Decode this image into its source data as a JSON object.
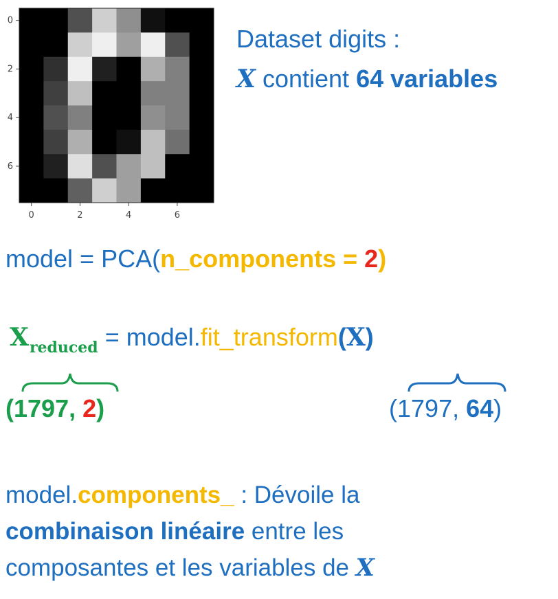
{
  "digit_image": {
    "x_ticks": [
      "0",
      "2",
      "4",
      "6"
    ],
    "y_ticks": [
      "0",
      "2",
      "4",
      "6"
    ],
    "pixels": [
      [
        0,
        0,
        5,
        13,
        9,
        1,
        0,
        0
      ],
      [
        0,
        0,
        13,
        15,
        10,
        15,
        5,
        0
      ],
      [
        0,
        3,
        15,
        2,
        0,
        11,
        8,
        0
      ],
      [
        0,
        4,
        12,
        0,
        0,
        8,
        8,
        0
      ],
      [
        0,
        5,
        8,
        0,
        0,
        9,
        8,
        0
      ],
      [
        0,
        4,
        11,
        0,
        1,
        12,
        7,
        0
      ],
      [
        0,
        2,
        14,
        5,
        10,
        12,
        0,
        0
      ],
      [
        0,
        0,
        6,
        13,
        10,
        0,
        0,
        0
      ]
    ]
  },
  "header": {
    "line1": "Dataset digits :",
    "x_symbol": "X",
    "contient": "contient",
    "count_text": "64 variables"
  },
  "code_pca": {
    "prefix": "model = PCA(",
    "param": "n_components",
    "equals": " = ",
    "value": "2",
    "suffix": ")"
  },
  "code_fit": {
    "x_main": "X",
    "x_sub": "reduced",
    "equals": " = model.",
    "method": "fit_transform",
    "open": "(",
    "arg": "X",
    "close": ")"
  },
  "shapes": {
    "reduced": {
      "open": "(",
      "rows": "1797",
      "sep": ", ",
      "cols": "2",
      "close": ")"
    },
    "original": {
      "open": "(",
      "rows": "1797",
      "sep": ", ",
      "cols": "64",
      "close": ")"
    }
  },
  "components": {
    "model_prefix": "model.",
    "attr": "components_",
    "desc1": " : Dévoile la",
    "bold_phrase": "combinaison linéaire",
    "desc2": " entre les",
    "desc3": "composantes et les variables de ",
    "x_symbol": "X"
  },
  "colors": {
    "blue": "#1f6fc0",
    "orange": "#f5b800",
    "red": "#e8261c",
    "green": "#1b9e4b"
  }
}
